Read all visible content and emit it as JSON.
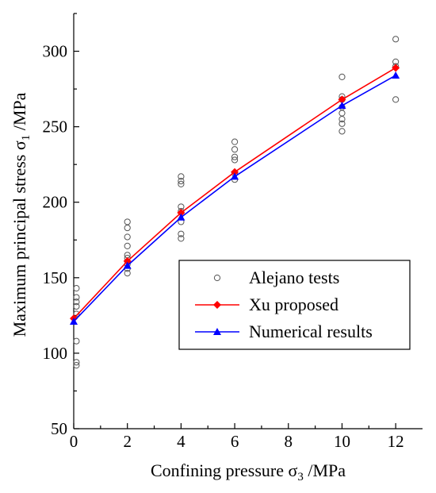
{
  "chart_data": {
    "type": "scatter",
    "xlabel": {
      "main": "Confining pressure σ",
      "sub": "3",
      "unit": " /MPa"
    },
    "ylabel": {
      "main": "Maximum principal stress σ",
      "sub": "1",
      "unit": " /MPa"
    },
    "xlim": [
      0,
      13
    ],
    "ylim": [
      50,
      325
    ],
    "x_ticks": [
      "0",
      "2",
      "4",
      "6",
      "8",
      "10",
      "12"
    ],
    "y_ticks": [
      "50",
      "100",
      "150",
      "200",
      "250",
      "300"
    ],
    "legend_position": "lower-right",
    "series": [
      {
        "name": "Alejano tests",
        "kind": "scatter",
        "marker": "open-circle",
        "color": "#555555",
        "points": [
          [
            0.1,
            92
          ],
          [
            0.1,
            94
          ],
          [
            0.1,
            108
          ],
          [
            0.1,
            126
          ],
          [
            0.1,
            131
          ],
          [
            0.1,
            134
          ],
          [
            0.1,
            137
          ],
          [
            0.1,
            143
          ],
          [
            2,
            153
          ],
          [
            2,
            156
          ],
          [
            2,
            159
          ],
          [
            2,
            163
          ],
          [
            2,
            165
          ],
          [
            2,
            171
          ],
          [
            2,
            177
          ],
          [
            2,
            183
          ],
          [
            2,
            187
          ],
          [
            4,
            176
          ],
          [
            4,
            179
          ],
          [
            4,
            187
          ],
          [
            4,
            194
          ],
          [
            4,
            197
          ],
          [
            4,
            212
          ],
          [
            4,
            214
          ],
          [
            4,
            217
          ],
          [
            6,
            215
          ],
          [
            6,
            219
          ],
          [
            6,
            228
          ],
          [
            6,
            230
          ],
          [
            6,
            235
          ],
          [
            6,
            240
          ],
          [
            10,
            247
          ],
          [
            10,
            252
          ],
          [
            10,
            255
          ],
          [
            10,
            259
          ],
          [
            10,
            263
          ],
          [
            10,
            268
          ],
          [
            10,
            270
          ],
          [
            10,
            283
          ],
          [
            12,
            268
          ],
          [
            12,
            290
          ],
          [
            12,
            293
          ],
          [
            12,
            308
          ]
        ]
      },
      {
        "name": "Xu proposed",
        "kind": "line",
        "marker": "filled-diamond",
        "color": "#ff0000",
        "x": [
          0,
          2,
          4,
          6,
          10,
          12
        ],
        "y": [
          123,
          161,
          193,
          220,
          268,
          289
        ]
      },
      {
        "name": "Numerical results",
        "kind": "line",
        "marker": "filled-triangle",
        "color": "#0000ff",
        "x": [
          0,
          2,
          4,
          6,
          10,
          12
        ],
        "y": [
          121,
          158,
          190,
          217,
          264,
          284
        ]
      }
    ]
  }
}
